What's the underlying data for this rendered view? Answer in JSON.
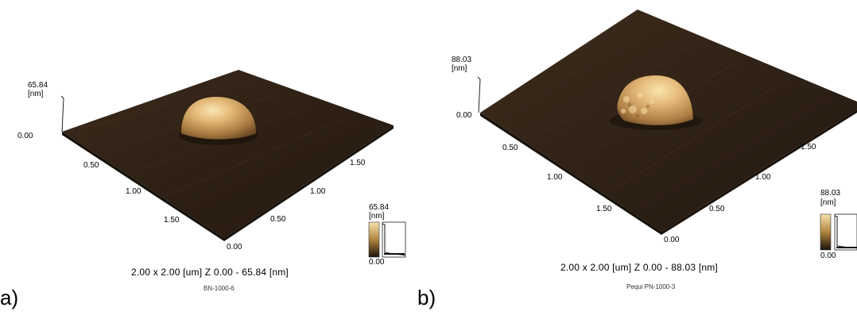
{
  "figure": {
    "panels": [
      {
        "label": "a)",
        "sample": "BN-1000-6",
        "scan_caption": "2.00 x 2.00 [um]   Z  0.00  -  65.84 [nm]",
        "z_axis": {
          "max": "65.84",
          "unit": "[nm]",
          "min": "0.00"
        },
        "x_ticks": [
          "0.50",
          "1.00",
          "1.50"
        ],
        "y_ticks": [
          "0.00",
          "0.50",
          "1.00",
          "1.50"
        ],
        "colorbar": {
          "max": "65.84",
          "unit": "[nm]",
          "min": "0.00"
        }
      },
      {
        "label": "b)",
        "sample": "Pequi PN-1000-3",
        "scan_caption": "2.00 x 2.00 [um]    Z  0.00  -  88.03 [nm]",
        "z_axis": {
          "max": "88.03",
          "unit": "[nm]",
          "min": "0.00"
        },
        "x_ticks": [
          "0.50",
          "1.00",
          "1.50"
        ],
        "y_ticks": [
          "0.00",
          "0.50",
          "1.00",
          "1.50"
        ],
        "colorbar": {
          "max": "88.03",
          "unit": "[nm]",
          "min": "0.00"
        }
      }
    ],
    "colors": {
      "surface_dark": "#2b1d12",
      "surface_mid": "#3a2a1a",
      "peak_light": "#f7dca0",
      "peak_mid": "#c79a55",
      "peak_dark": "#7a5328"
    }
  }
}
